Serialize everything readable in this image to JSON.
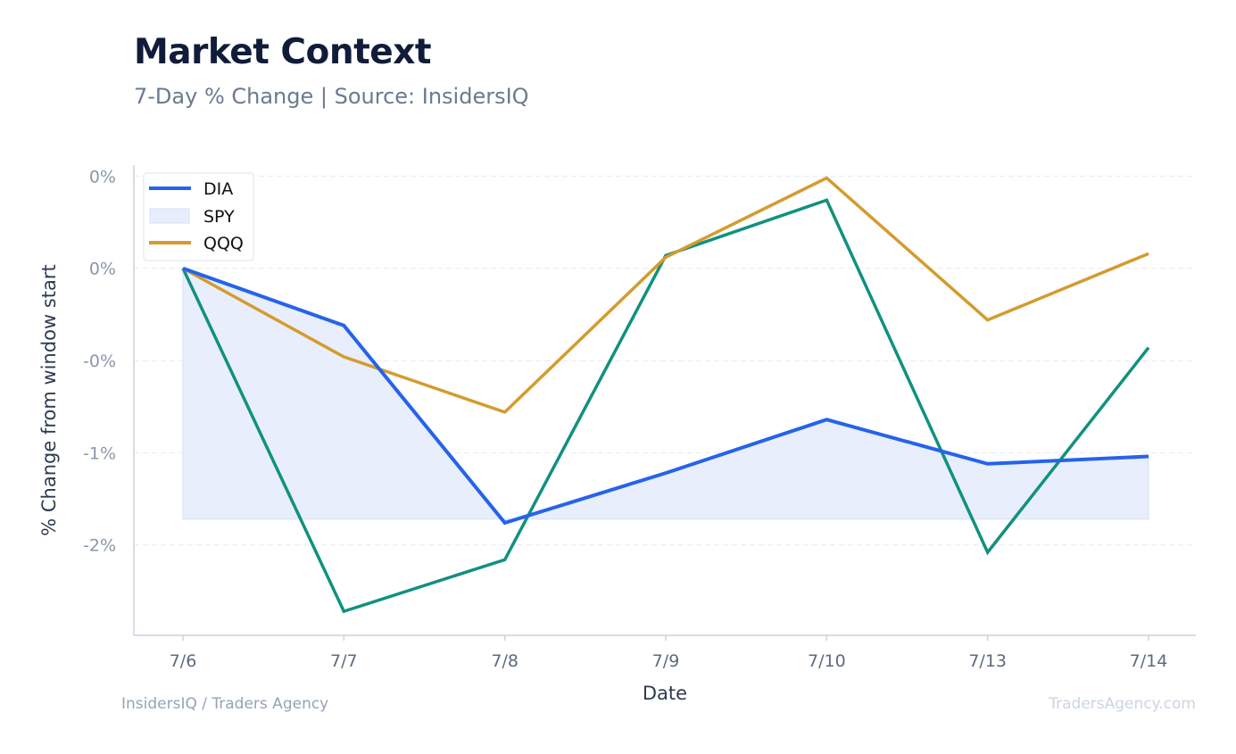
{
  "header": {
    "title": "Market Context",
    "subtitle": "7-Day % Change | Source: InsidersIQ"
  },
  "footer": {
    "left": "InsidersIQ / Traders Agency",
    "right": "TradersAgency.com"
  },
  "colors": {
    "DIA": "#2563eb",
    "SPY": "#e8eefb",
    "SPY_edge": "#d6e0f7",
    "QQQ": "#d49b2e",
    "teal": "#11917f",
    "grid": "#e6ebf1",
    "axis": "#c9d3df"
  },
  "chart_data": {
    "type": "line",
    "title": "",
    "xlabel": "Date",
    "ylabel": "% Change from window start",
    "categories": [
      "7/6",
      "7/7",
      "7/8",
      "7/9",
      "7/10",
      "7/13",
      "7/14"
    ],
    "y_tick_labels": [
      "0%",
      "0%",
      "-0%",
      "-1%",
      "-2%"
    ],
    "y_tick_values": [
      0.5,
      0.0,
      -0.5,
      -1.0,
      -1.5
    ],
    "ylim": [
      -1.99,
      0.56
    ],
    "grid": true,
    "legend_position": "top-left",
    "series": [
      {
        "name": "DIA",
        "style": "line",
        "values": [
          0.0,
          -0.31,
          -1.38,
          -1.11,
          -0.82,
          -1.06,
          -1.02
        ]
      },
      {
        "name": "SPY",
        "style": "area",
        "values": [
          0.0,
          -1.36,
          -1.36,
          -1.36,
          -1.36,
          -1.36,
          -1.36
        ]
      },
      {
        "name": "QQQ",
        "style": "line",
        "values": [
          0.0,
          -0.48,
          -0.78,
          0.06,
          0.49,
          -0.28,
          0.08
        ]
      },
      {
        "style": "line",
        "values": [
          0.0,
          -1.86,
          -1.58,
          0.07,
          0.37,
          -1.54,
          -0.43
        ]
      }
    ]
  }
}
